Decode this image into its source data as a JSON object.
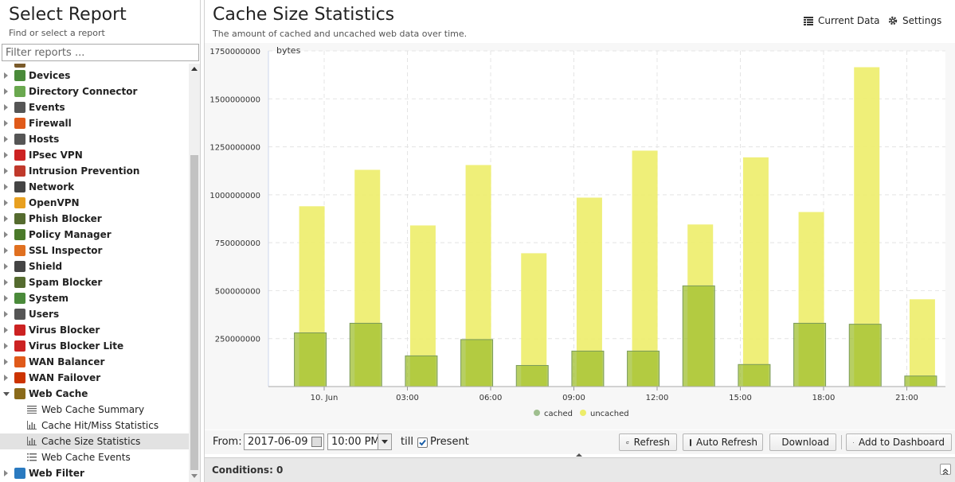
{
  "left_panel": {
    "title": "Select Report",
    "subtitle": "Find or select a report",
    "filter_placeholder": "Filter reports ...",
    "tree": [
      {
        "label": "Devices",
        "icon": "devices-icon",
        "color": "#4a8a3a"
      },
      {
        "label": "Directory Connector",
        "icon": "directory-connector-icon",
        "color": "#6aa84f"
      },
      {
        "label": "Events",
        "icon": "events-icon",
        "color": "#555555"
      },
      {
        "label": "Firewall",
        "icon": "firewall-icon",
        "color": "#e05a1a"
      },
      {
        "label": "Hosts",
        "icon": "hosts-icon",
        "color": "#555555"
      },
      {
        "label": "IPsec VPN",
        "icon": "ipsec-vpn-icon",
        "color": "#cc2222"
      },
      {
        "label": "Intrusion Prevention",
        "icon": "intrusion-prevention-icon",
        "color": "#c0392b"
      },
      {
        "label": "Network",
        "icon": "network-icon",
        "color": "#444444"
      },
      {
        "label": "OpenVPN",
        "icon": "openvpn-icon",
        "color": "#e8a020"
      },
      {
        "label": "Phish Blocker",
        "icon": "phish-blocker-icon",
        "color": "#556b2f"
      },
      {
        "label": "Policy Manager",
        "icon": "policy-manager-icon",
        "color": "#4a7a2a"
      },
      {
        "label": "SSL Inspector",
        "icon": "ssl-inspector-icon",
        "color": "#e07020"
      },
      {
        "label": "Shield",
        "icon": "shield-icon",
        "color": "#444444"
      },
      {
        "label": "Spam Blocker",
        "icon": "spam-blocker-icon",
        "color": "#556b2f"
      },
      {
        "label": "System",
        "icon": "system-icon",
        "color": "#4a8a3a"
      },
      {
        "label": "Users",
        "icon": "users-icon",
        "color": "#555555"
      },
      {
        "label": "Virus Blocker",
        "icon": "virus-blocker-icon",
        "color": "#cc2222"
      },
      {
        "label": "Virus Blocker Lite",
        "icon": "virus-blocker-lite-icon",
        "color": "#cc2222"
      },
      {
        "label": "WAN Balancer",
        "icon": "wan-balancer-icon",
        "color": "#e05a1a"
      },
      {
        "label": "WAN Failover",
        "icon": "wan-failover-icon",
        "color": "#cc3300"
      },
      {
        "label": "Web Cache",
        "icon": "web-cache-icon",
        "color": "#8a6a1a",
        "open": true
      },
      {
        "label": "Web Cache Summary",
        "icon": "lines-icon",
        "child": true
      },
      {
        "label": "Cache Hit/Miss Statistics",
        "icon": "bar-chart-icon",
        "child": true
      },
      {
        "label": "Cache Size Statistics",
        "icon": "bar-chart-icon",
        "child": true,
        "selected": true
      },
      {
        "label": "Web Cache Events",
        "icon": "list-icon",
        "child": true
      },
      {
        "label": "Web Filter",
        "icon": "web-filter-icon",
        "color": "#2a7ac0"
      }
    ]
  },
  "report": {
    "title": "Cache Size Statistics",
    "subtitle": "The amount of cached and uncached web data over time.",
    "current_data_label": "Current Data",
    "settings_label": "Settings"
  },
  "chart_data": {
    "type": "bar",
    "stacked": false,
    "ylabel": "bytes",
    "ylim": [
      0,
      1750000000
    ],
    "yticks": [
      0,
      250000000,
      500000000,
      750000000,
      1000000000,
      1250000000,
      1500000000,
      1750000000
    ],
    "ytick_labels": [
      "",
      "250000000",
      "500000000",
      "750000000",
      "1000000000",
      "1250000000",
      "1500000000",
      "1750000000"
    ],
    "xtick_labels": [
      "10. Jun",
      "03:00",
      "06:00",
      "09:00",
      "12:00",
      "15:00",
      "18:00",
      "21:00"
    ],
    "xtick_hours": [
      0,
      3,
      6,
      9,
      12,
      15,
      18,
      21
    ],
    "x_hours": [
      -0.5,
      1.5,
      3.5,
      5.5,
      7.5,
      9.5,
      11.5,
      13.5,
      15.5,
      17.5,
      19.5,
      21.5
    ],
    "series": [
      {
        "name": "cached",
        "color": "#9fbf2f",
        "values": [
          280000000,
          330000000,
          160000000,
          245000000,
          110000000,
          185000000,
          185000000,
          525000000,
          115000000,
          330000000,
          325000000,
          55000000
        ]
      },
      {
        "name": "uncached",
        "color": "#eded6a",
        "values": [
          940000000,
          1130000000,
          840000000,
          1155000000,
          695000000,
          985000000,
          1230000000,
          845000000,
          1195000000,
          910000000,
          1665000000,
          455000000
        ]
      }
    ],
    "legend_position": "bottom",
    "grid": true
  },
  "toolbar": {
    "from_label": "From:",
    "date_value": "2017-06-09",
    "time_value": "10:00 PM",
    "till_label": "till",
    "present_label": "Present",
    "present_checked": true,
    "refresh_label": "Refresh",
    "auto_refresh_label": "Auto Refresh",
    "download_label": "Download",
    "add_dashboard_label": "Add to Dashboard"
  },
  "conditions": {
    "label": "Conditions: 0"
  }
}
